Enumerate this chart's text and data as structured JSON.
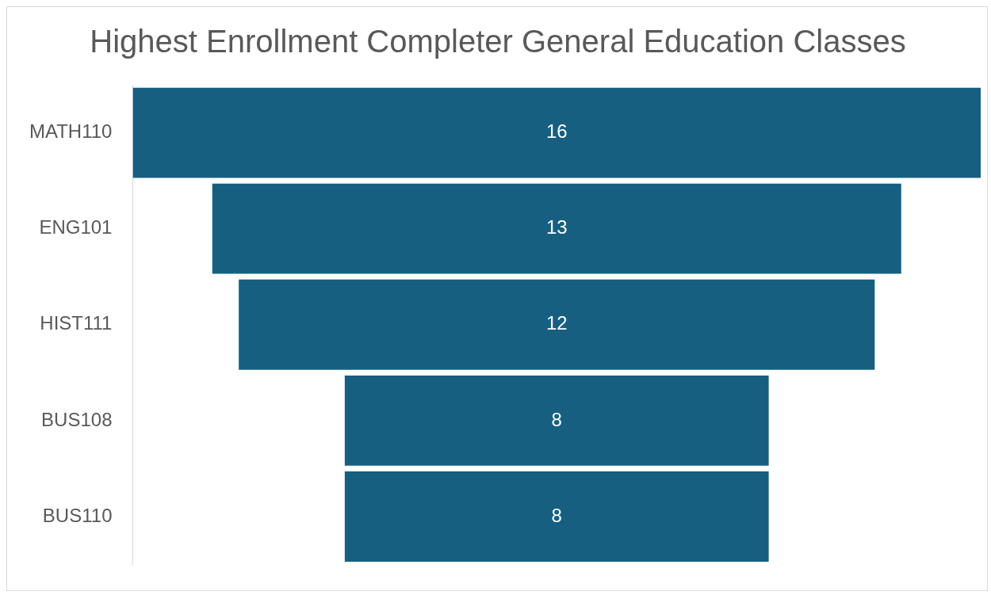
{
  "chart_data": {
    "type": "other",
    "title": "Highest Enrollment Completer General Education Classes",
    "categories": [
      "MATH110",
      "ENG101",
      "HIST111",
      "BUS108",
      "BUS110"
    ],
    "values": [
      16,
      13,
      12,
      8,
      8
    ],
    "color": "#175f80",
    "data_labels": true
  }
}
